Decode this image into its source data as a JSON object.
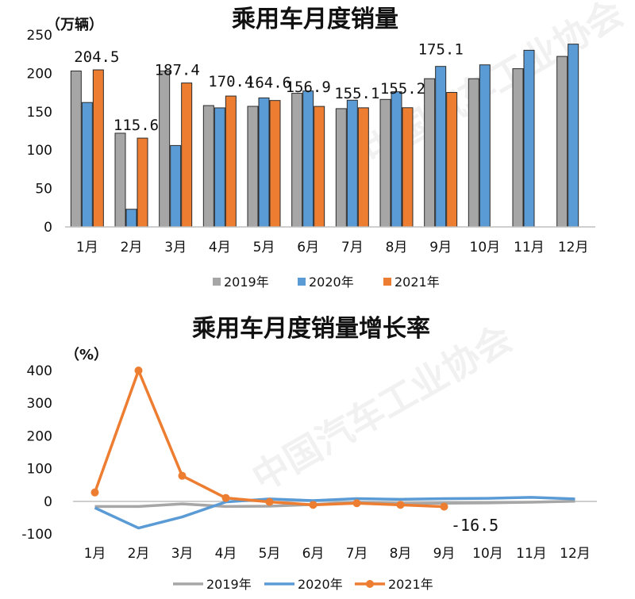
{
  "watermark": "中国汽车工业协会",
  "chart_data": [
    {
      "type": "bar",
      "title": "乘用车月度销量",
      "ylabel": "（万辆）",
      "ylim": [
        0,
        250
      ],
      "yticks": [
        0,
        50,
        100,
        150,
        200,
        250
      ],
      "categories": [
        "1月",
        "2月",
        "3月",
        "4月",
        "5月",
        "6月",
        "7月",
        "8月",
        "9月",
        "10月",
        "11月",
        "12月"
      ],
      "series": [
        {
          "name": "2019年",
          "color": "#a6a6a6",
          "values": [
            203,
            122,
            203,
            158,
            157,
            174,
            154,
            166,
            193,
            193,
            206,
            222
          ]
        },
        {
          "name": "2020年",
          "color": "#5b9bd5",
          "values": [
            162,
            23,
            106,
            155,
            168,
            177,
            165,
            176,
            209,
            211,
            230,
            238
          ]
        },
        {
          "name": "2021年",
          "color": "#ed7d31",
          "values": [
            204.5,
            115.6,
            187.4,
            170.4,
            164.6,
            156.9,
            155.1,
            155.2,
            175.1,
            null,
            null,
            null
          ]
        }
      ],
      "data_labels": [
        "204.5",
        "115.6",
        "187.4",
        "170.4",
        "164.6",
        "156.9",
        "155.1",
        "155.2",
        "175.1"
      ],
      "legend": "bottom",
      "grid": false
    },
    {
      "type": "line",
      "title": "乘用车月度销量增长率",
      "ylabel": "（%）",
      "ylim": [
        -100,
        400
      ],
      "yticks": [
        -100,
        0,
        100,
        200,
        300,
        400
      ],
      "categories": [
        "1月",
        "2月",
        "3月",
        "4月",
        "5月",
        "6月",
        "7月",
        "8月",
        "9月",
        "10月",
        "11月",
        "12月"
      ],
      "series": [
        {
          "name": "2019年",
          "color": "#a6a6a6",
          "values": [
            -16,
            -16,
            -8,
            -16,
            -15,
            -10,
            -3,
            -7,
            -6,
            -5,
            -3,
            0
          ]
        },
        {
          "name": "2020年",
          "color": "#5b9bd5",
          "values": [
            -20,
            -82,
            -48,
            -2,
            7,
            2,
            8,
            6,
            8,
            9,
            12,
            7
          ]
        },
        {
          "name": "2021年",
          "color": "#ed7d31",
          "markers": true,
          "values": [
            27,
            400,
            78,
            10,
            -2,
            -11,
            -6,
            -11,
            -16.5,
            null,
            null,
            null
          ]
        }
      ],
      "annotation": "-16.5",
      "annotation_color": "#e02020",
      "legend": "bottom",
      "grid": false
    }
  ]
}
